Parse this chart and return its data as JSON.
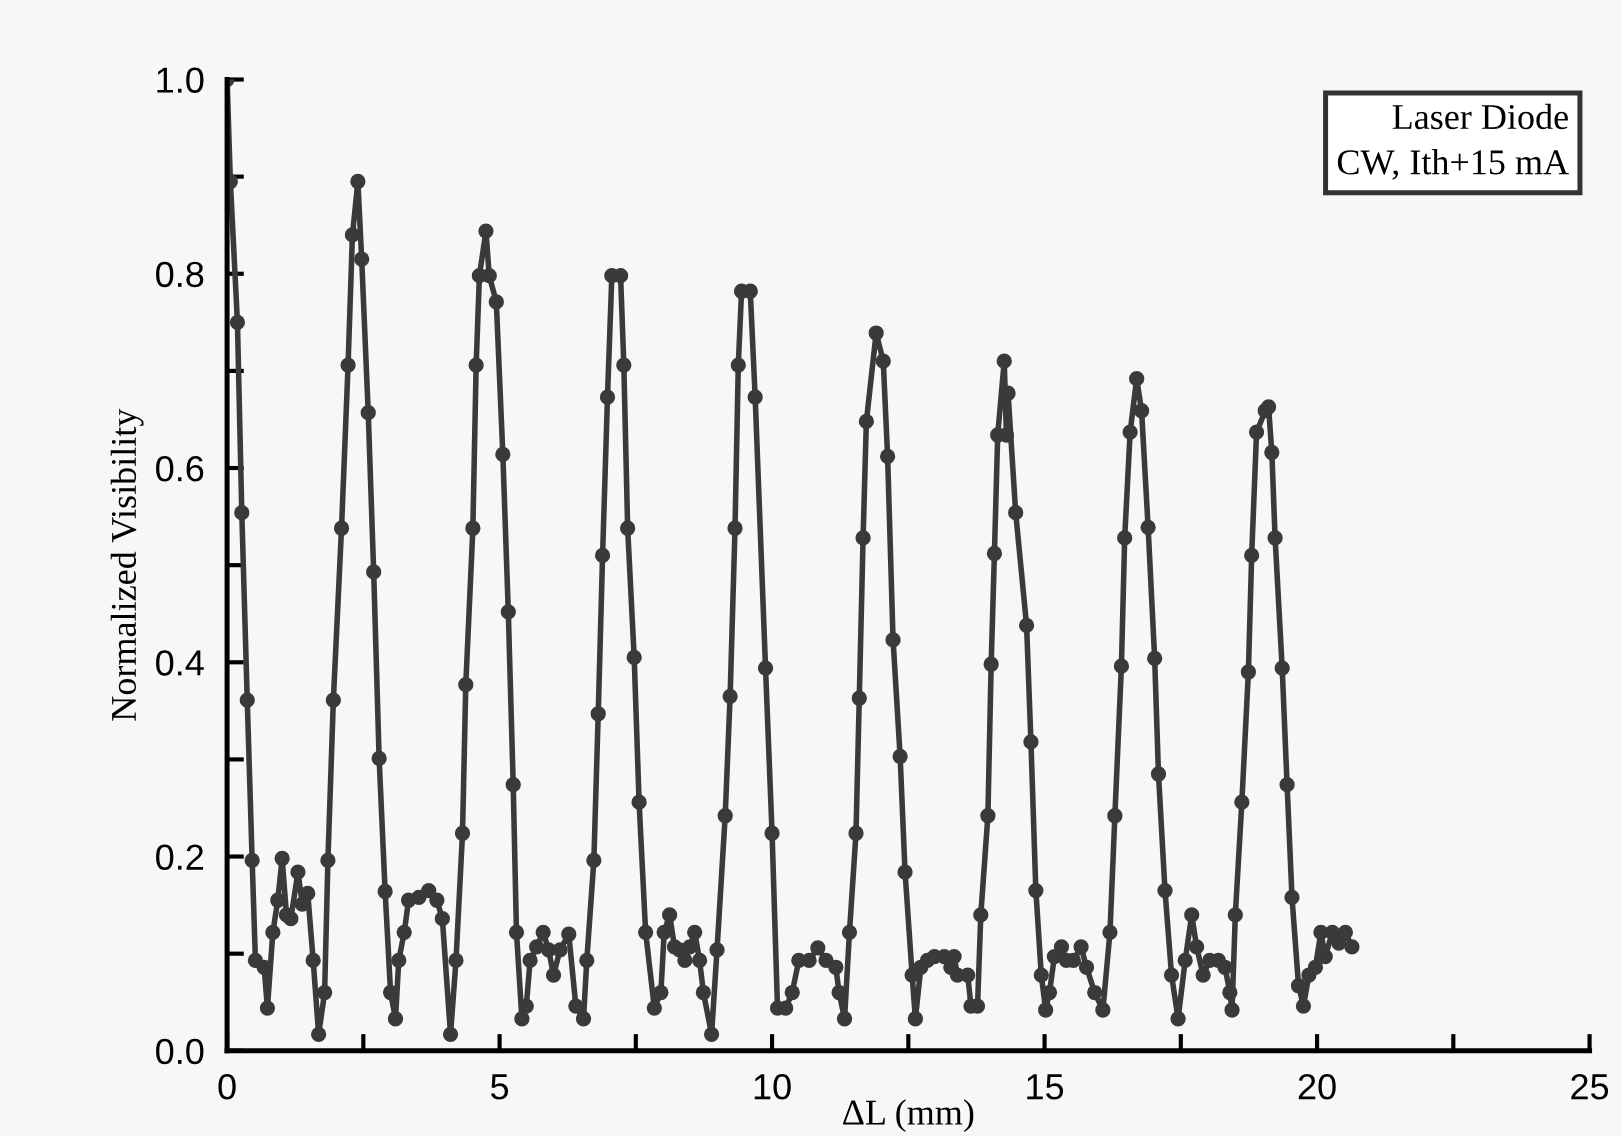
{
  "chart_data": {
    "type": "line",
    "xlabel": "ΔL (mm)",
    "ylabel": "Normalized Visibility",
    "annotations": [
      "Laser Diode",
      "CW, Ith+15 mA"
    ],
    "marker": "circle",
    "line_style": "solid",
    "grid": false,
    "legend": false,
    "xlim": [
      0,
      25
    ],
    "ylim": [
      0,
      1.0
    ],
    "xticks": [
      0,
      {
        "value": 2.5,
        "label": null
      },
      5,
      {
        "value": 7.5,
        "label": null
      },
      10,
      {
        "value": 12.5,
        "label": null
      },
      15,
      {
        "value": 17.5,
        "label": null
      },
      20,
      {
        "value": 22.5,
        "label": null
      },
      25
    ],
    "yticks": [
      {
        "value": 0,
        "label": "0.0"
      },
      {
        "value": 0.1,
        "label": null
      },
      0.2,
      {
        "value": 0.3,
        "label": null
      },
      0.4,
      {
        "value": 0.5,
        "label": null
      },
      0.6,
      {
        "value": 0.7,
        "label": null
      },
      0.8,
      {
        "value": 0.9,
        "label": null
      },
      {
        "value": 1.0,
        "label": "1.0"
      }
    ],
    "series": [
      {
        "color": "#3a3a3a",
        "x": [
          0,
          0.06,
          0.19,
          0.27,
          0.37,
          0.46,
          0.52,
          0.68,
          0.74,
          0.84,
          0.93,
          1.01,
          1.09,
          1.17,
          1.3,
          1.38,
          1.48,
          1.58,
          1.68,
          1.79,
          1.85,
          1.95,
          2.1,
          2.22,
          2.3,
          2.4,
          2.47,
          2.59,
          2.69,
          2.79,
          2.9,
          3.0,
          3.09,
          3.15,
          3.25,
          3.33,
          3.52,
          3.7,
          3.85,
          3.95,
          4.1,
          4.2,
          4.32,
          4.38,
          4.51,
          4.57,
          4.63,
          4.75,
          4.81,
          4.94,
          5.06,
          5.16,
          5.25,
          5.31,
          5.41,
          5.49,
          5.56,
          5.68,
          5.8,
          5.9,
          5.99,
          6.11,
          6.27,
          6.4,
          6.54,
          6.6,
          6.73,
          6.81,
          6.89,
          6.98,
          7.06,
          7.22,
          7.28,
          7.35,
          7.47,
          7.56,
          7.68,
          7.84,
          7.96,
          8.02,
          8.12,
          8.21,
          8.3,
          8.4,
          8.49,
          8.58,
          8.67,
          8.74,
          8.89,
          8.99,
          9.14,
          9.23,
          9.32,
          9.38,
          9.44,
          9.6,
          9.69,
          9.88,
          10.0,
          10.1,
          10.25,
          10.37,
          10.49,
          10.68,
          10.84,
          10.99,
          11.17,
          11.23,
          11.33,
          11.42,
          11.54,
          11.6,
          11.67,
          11.73,
          11.91,
          12.04,
          12.12,
          12.22,
          12.35,
          12.44,
          12.57,
          12.63,
          12.73,
          12.85,
          12.98,
          13.16,
          13.28,
          13.34,
          13.4,
          13.59,
          13.65,
          13.77,
          13.83,
          13.96,
          14.02,
          14.08,
          14.14,
          14.26,
          14.3,
          14.33,
          14.47,
          14.67,
          14.75,
          14.84,
          14.94,
          15.02,
          15.09,
          15.18,
          15.31,
          15.4,
          15.53,
          15.67,
          15.77,
          15.92,
          16.07,
          16.2,
          16.29,
          16.41,
          16.47,
          16.57,
          16.69,
          16.78,
          16.9,
          17.02,
          17.09,
          17.21,
          17.33,
          17.45,
          17.58,
          17.7,
          17.79,
          17.91,
          18.03,
          18.19,
          18.31,
          18.4,
          18.44,
          18.5,
          18.62,
          18.74,
          18.8,
          18.89,
          19.05,
          19.11,
          19.17,
          19.23,
          19.36,
          19.45,
          19.54,
          19.66,
          19.75,
          19.85,
          19.97,
          20.07,
          20.15,
          20.28,
          20.4,
          20.52,
          20.64
        ],
        "values": [
          1.0,
          0.895,
          0.75,
          0.554,
          0.361,
          0.196,
          0.093,
          0.086,
          0.044,
          0.122,
          0.155,
          0.198,
          0.14,
          0.136,
          0.184,
          0.151,
          0.162,
          0.093,
          0.017,
          0.06,
          0.196,
          0.361,
          0.538,
          0.706,
          0.84,
          0.895,
          0.815,
          0.657,
          0.493,
          0.301,
          0.164,
          0.06,
          0.033,
          0.093,
          0.122,
          0.155,
          0.158,
          0.165,
          0.155,
          0.136,
          0.017,
          0.093,
          0.224,
          0.377,
          0.538,
          0.706,
          0.798,
          0.844,
          0.798,
          0.771,
          0.614,
          0.452,
          0.274,
          0.122,
          0.033,
          0.046,
          0.093,
          0.107,
          0.122,
          0.104,
          0.078,
          0.104,
          0.12,
          0.046,
          0.033,
          0.093,
          0.196,
          0.347,
          0.51,
          0.673,
          0.798,
          0.798,
          0.706,
          0.538,
          0.405,
          0.256,
          0.122,
          0.044,
          0.06,
          0.122,
          0.14,
          0.107,
          0.104,
          0.093,
          0.107,
          0.122,
          0.093,
          0.06,
          0.017,
          0.104,
          0.242,
          0.365,
          0.538,
          0.706,
          0.782,
          0.782,
          0.673,
          0.394,
          0.224,
          0.044,
          0.044,
          0.06,
          0.093,
          0.093,
          0.106,
          0.093,
          0.086,
          0.06,
          0.033,
          0.122,
          0.224,
          0.363,
          0.528,
          0.648,
          0.739,
          0.71,
          0.612,
          0.423,
          0.303,
          0.184,
          0.078,
          0.033,
          0.086,
          0.093,
          0.097,
          0.097,
          0.086,
          0.097,
          0.078,
          0.078,
          0.046,
          0.046,
          0.14,
          0.242,
          0.398,
          0.512,
          0.634,
          0.71,
          0.634,
          0.677,
          0.554,
          0.438,
          0.318,
          0.165,
          0.078,
          0.042,
          0.06,
          0.097,
          0.107,
          0.093,
          0.093,
          0.107,
          0.086,
          0.06,
          0.042,
          0.122,
          0.242,
          0.396,
          0.528,
          0.637,
          0.692,
          0.659,
          0.539,
          0.404,
          0.285,
          0.165,
          0.078,
          0.033,
          0.093,
          0.14,
          0.107,
          0.078,
          0.093,
          0.093,
          0.086,
          0.06,
          0.042,
          0.14,
          0.256,
          0.39,
          0.51,
          0.637,
          0.659,
          0.663,
          0.616,
          0.528,
          0.394,
          0.274,
          0.158,
          0.067,
          0.046,
          0.078,
          0.086,
          0.122,
          0.097,
          0.122,
          0.111,
          0.122,
          0.107
        ]
      }
    ]
  }
}
